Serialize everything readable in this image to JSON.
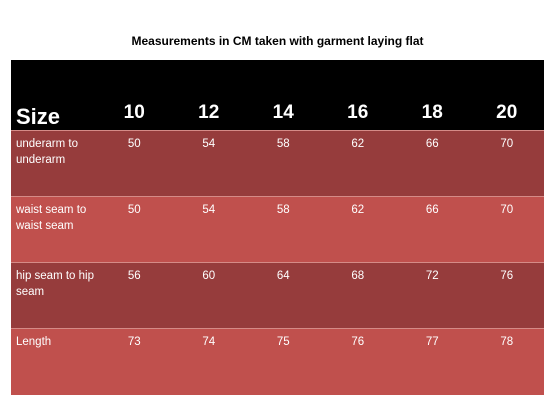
{
  "title": "Measurements in CM taken with garment laying flat",
  "table": {
    "header_label": "Size",
    "sizes": [
      "10",
      "12",
      "14",
      "16",
      "18",
      "20"
    ],
    "rows": [
      {
        "label": "underarm to underarm",
        "values": [
          "50",
          "54",
          "58",
          "62",
          "66",
          "70"
        ]
      },
      {
        "label": "waist seam to waist seam",
        "values": [
          "50",
          "54",
          "58",
          "62",
          "66",
          "70"
        ]
      },
      {
        "label": "hip seam to hip seam",
        "values": [
          "56",
          "60",
          "64",
          "68",
          "72",
          "76"
        ]
      },
      {
        "label": "Length",
        "values": [
          "73",
          "74",
          "75",
          "76",
          "77",
          "78"
        ]
      }
    ]
  },
  "colors": {
    "header_bg": "#000000",
    "row_dark": "#963c3c",
    "row_light": "#c0504d",
    "text": "#ffffff"
  }
}
